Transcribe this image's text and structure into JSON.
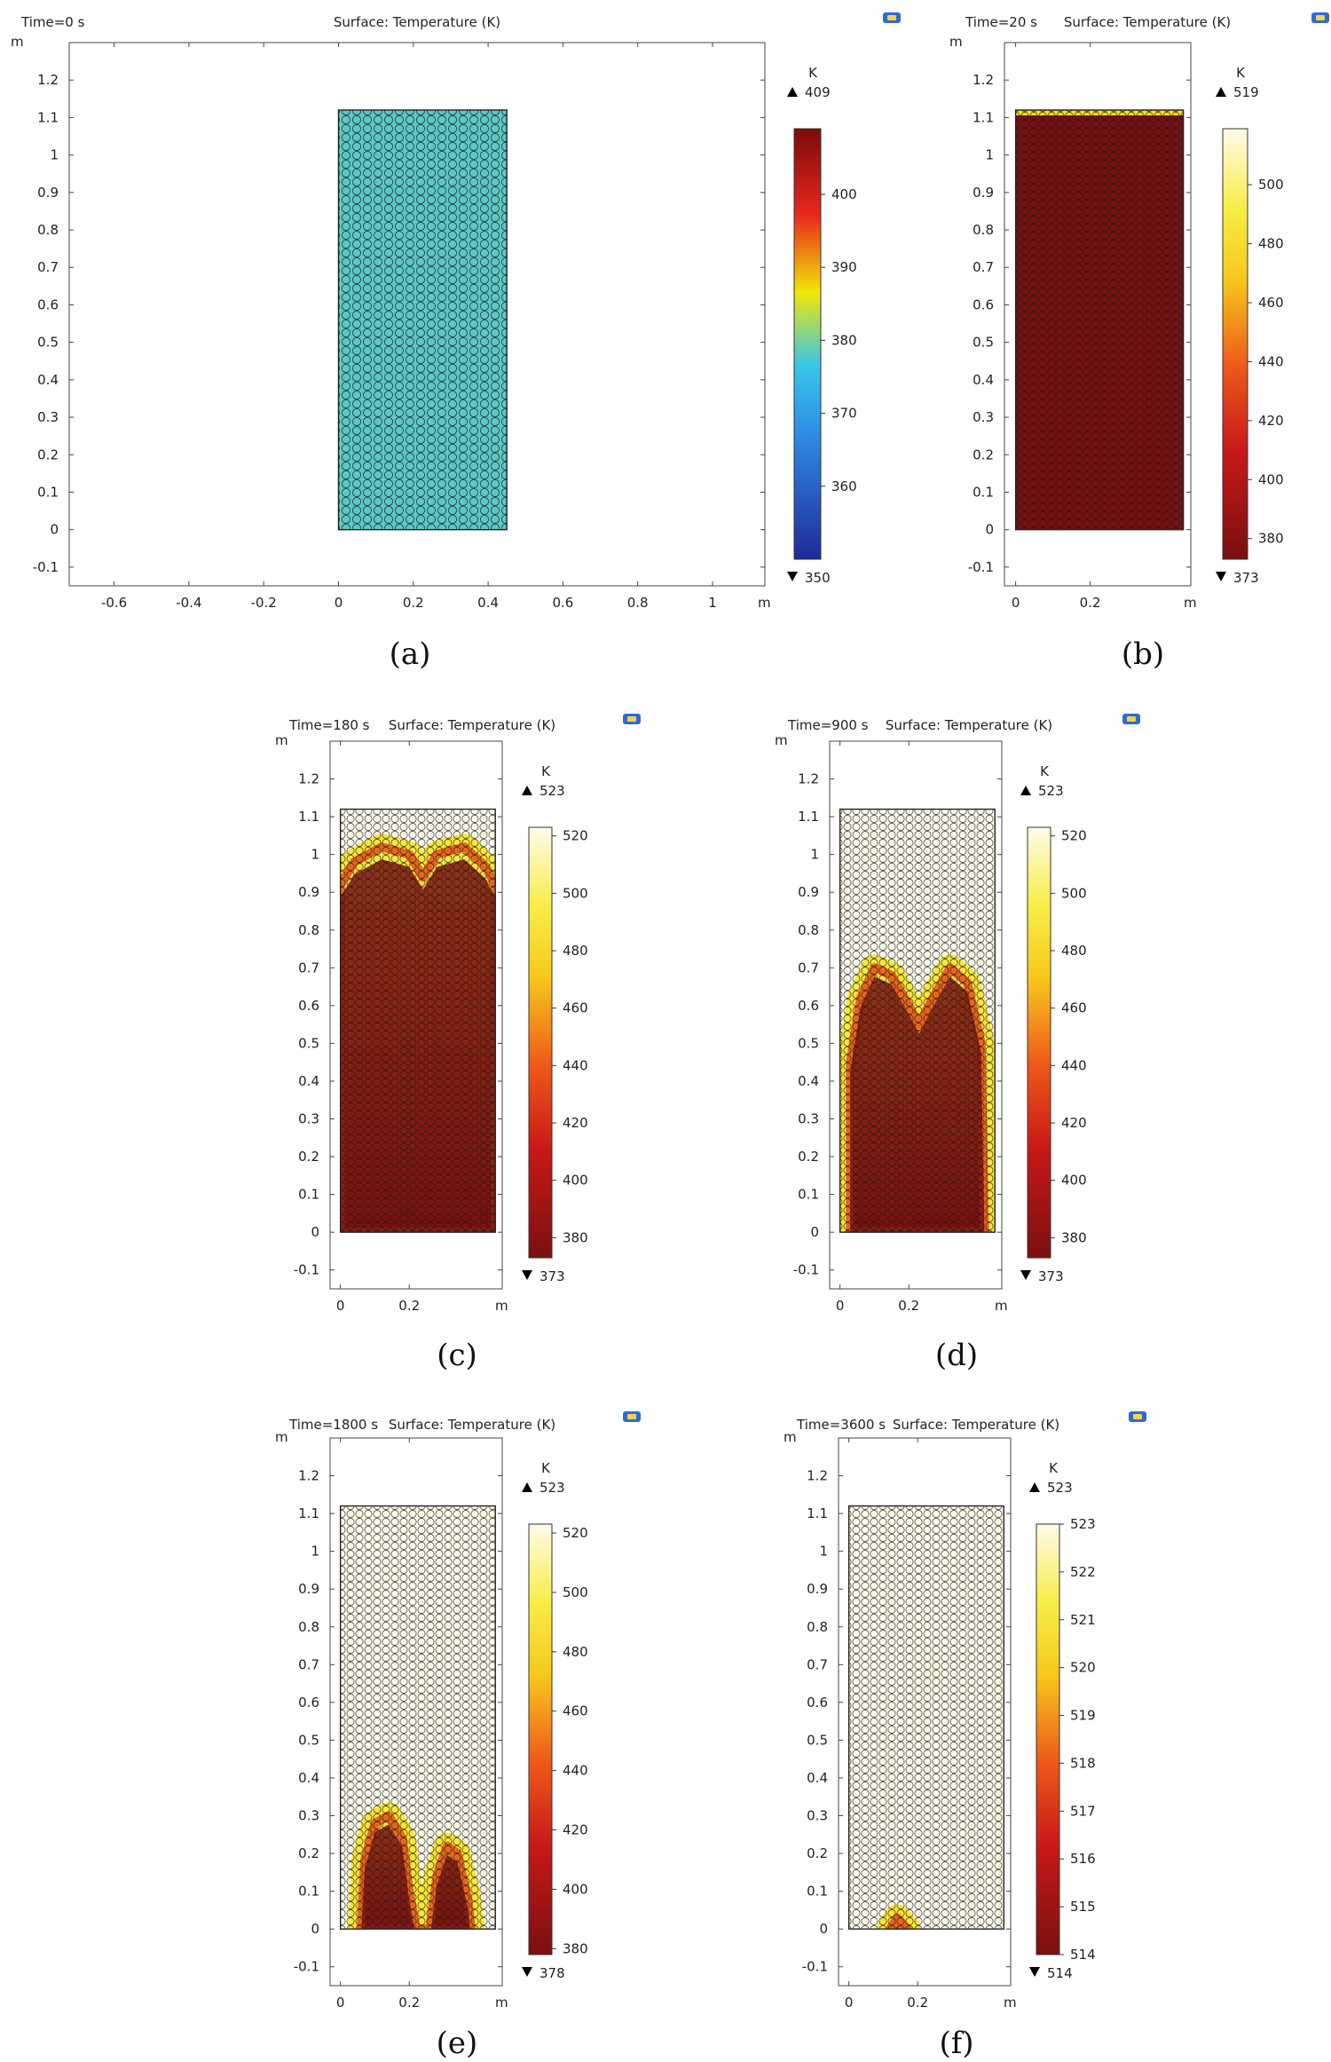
{
  "colors": {
    "cyan_bed": "#5cc8c6",
    "heat_low": "#7a1010",
    "heat_mid": "#e8281c",
    "heat_high": "#f7e21c",
    "heat_top": "#fffbea",
    "rainbow_low": "#1f2a9a",
    "rainbow_mid": "#38c6e8",
    "rainbow_mid2": "#f3e60a",
    "rainbow_high": "#7a0b0b"
  },
  "chart_data": [
    {
      "id": "a",
      "type": "heatmap",
      "time_label": "Time=0 s",
      "title": "Surface: Temperature (K)",
      "caption": "(a)",
      "unit_label": "m",
      "colorbar_unit": "K",
      "max_label": "409",
      "min_label": "350",
      "colorbar_ticks": [
        "400",
        "390",
        "380",
        "370",
        "360"
      ],
      "colorbar_tick_values": [
        400,
        390,
        380,
        370,
        360
      ],
      "colorbar_range": [
        350,
        409
      ],
      "colormap": "rainbow",
      "xlim": [
        -0.72,
        1.14
      ],
      "ylim": [
        -0.15,
        1.3
      ],
      "xticks": [
        "-0.6",
        "-0.4",
        "-0.2",
        "0",
        "0.2",
        "0.4",
        "0.6",
        "0.8",
        "1"
      ],
      "xtick_values": [
        -0.6,
        -0.4,
        -0.2,
        0,
        0.2,
        0.4,
        0.6,
        0.8,
        1
      ],
      "yticks": [
        "1.2",
        "1.1",
        "1",
        "0.9",
        "0.8",
        "0.7",
        "0.6",
        "0.5",
        "0.4",
        "0.3",
        "0.2",
        "0.1",
        "0",
        "-0.1"
      ],
      "ytick_values": [
        1.2,
        1.1,
        1,
        0.9,
        0.8,
        0.7,
        0.6,
        0.5,
        0.4,
        0.3,
        0.2,
        0.1,
        0,
        -0.1
      ],
      "bed": {
        "x0": 0,
        "x1": 0.45,
        "y0": 0,
        "y1": 1.12
      },
      "front": []
    },
    {
      "id": "b",
      "type": "heatmap",
      "time_label": "Time=20 s",
      "title": "Surface: Temperature (K)",
      "caption": "(b)",
      "unit_label": "m",
      "colorbar_unit": "K",
      "max_label": "519",
      "min_label": "373",
      "colorbar_ticks": [
        "500",
        "480",
        "460",
        "440",
        "420",
        "400",
        "380"
      ],
      "colorbar_tick_values": [
        500,
        480,
        460,
        440,
        420,
        400,
        380
      ],
      "colorbar_range": [
        373,
        519
      ],
      "colormap": "heat",
      "xlim": [
        -0.03,
        0.47
      ],
      "ylim": [
        -0.15,
        1.3
      ],
      "xticks": [
        "0",
        "0.2"
      ],
      "xtick_values": [
        0,
        0.2
      ],
      "yticks": [
        "1.2",
        "1.1",
        "1",
        "0.9",
        "0.8",
        "0.7",
        "0.6",
        "0.5",
        "0.4",
        "0.3",
        "0.2",
        "0.1",
        "0",
        "-0.1"
      ],
      "ytick_values": [
        1.2,
        1.1,
        1,
        0.9,
        0.8,
        0.7,
        0.6,
        0.5,
        0.4,
        0.3,
        0.2,
        0.1,
        0,
        -0.1
      ],
      "bed": {
        "x0": 0,
        "x1": 0.45,
        "y0": 0,
        "y1": 1.12
      },
      "front": [
        [
          0,
          1.1
        ],
        [
          0.45,
          1.1
        ]
      ]
    },
    {
      "id": "c",
      "type": "heatmap",
      "time_label": "Time=180 s",
      "title": "Surface: Temperature (K)",
      "caption": "(c)",
      "unit_label": "m",
      "colorbar_unit": "K",
      "max_label": "523",
      "min_label": "373",
      "colorbar_ticks": [
        "520",
        "500",
        "480",
        "460",
        "440",
        "420",
        "400",
        "380"
      ],
      "colorbar_tick_values": [
        520,
        500,
        480,
        460,
        440,
        420,
        400,
        380
      ],
      "colorbar_range": [
        373,
        523
      ],
      "colormap": "heat",
      "xlim": [
        -0.03,
        0.47
      ],
      "ylim": [
        -0.15,
        1.3
      ],
      "xticks": [
        "0",
        "0.2"
      ],
      "xtick_values": [
        0,
        0.2
      ],
      "yticks": [
        "1.2",
        "1.1",
        "1",
        "0.9",
        "0.8",
        "0.7",
        "0.6",
        "0.5",
        "0.4",
        "0.3",
        "0.2",
        "0.1",
        "0",
        "-0.1"
      ],
      "ytick_values": [
        1.2,
        1.1,
        1,
        0.9,
        0.8,
        0.7,
        0.6,
        0.5,
        0.4,
        0.3,
        0.2,
        0.1,
        0,
        -0.1
      ],
      "bed": {
        "x0": 0,
        "x1": 0.45,
        "y0": 0,
        "y1": 1.12
      },
      "front": [
        [
          0,
          0.92
        ],
        [
          0.04,
          0.98
        ],
        [
          0.12,
          1.02
        ],
        [
          0.2,
          1.0
        ],
        [
          0.24,
          0.94
        ],
        [
          0.28,
          1.0
        ],
        [
          0.36,
          1.02
        ],
        [
          0.42,
          0.97
        ],
        [
          0.45,
          0.92
        ]
      ]
    },
    {
      "id": "d",
      "type": "heatmap",
      "time_label": "Time=900 s",
      "title": "Surface: Temperature (K)",
      "caption": "(d)",
      "unit_label": "m",
      "colorbar_unit": "K",
      "max_label": "523",
      "min_label": "373",
      "colorbar_ticks": [
        "520",
        "500",
        "480",
        "460",
        "440",
        "420",
        "400",
        "380"
      ],
      "colorbar_tick_values": [
        520,
        500,
        480,
        460,
        440,
        420,
        400,
        380
      ],
      "colorbar_range": [
        373,
        523
      ],
      "colormap": "heat",
      "xlim": [
        -0.03,
        0.47
      ],
      "ylim": [
        -0.15,
        1.3
      ],
      "xticks": [
        "0",
        "0.2"
      ],
      "xtick_values": [
        0,
        0.2
      ],
      "yticks": [
        "1.2",
        "1.1",
        "1",
        "0.9",
        "0.8",
        "0.7",
        "0.6",
        "0.5",
        "0.4",
        "0.3",
        "0.2",
        "0.1",
        "0",
        "-0.1"
      ],
      "ytick_values": [
        1.2,
        1.1,
        1,
        0.9,
        0.8,
        0.7,
        0.6,
        0.5,
        0.4,
        0.3,
        0.2,
        0.1,
        0,
        -0.1
      ],
      "bed": {
        "x0": 0,
        "x1": 0.45,
        "y0": 0,
        "y1": 1.12
      },
      "front": [
        [
          0.03,
          0.0
        ],
        [
          0.03,
          0.45
        ],
        [
          0.06,
          0.62
        ],
        [
          0.1,
          0.7
        ],
        [
          0.15,
          0.68
        ],
        [
          0.2,
          0.6
        ],
        [
          0.23,
          0.55
        ],
        [
          0.27,
          0.62
        ],
        [
          0.32,
          0.7
        ],
        [
          0.37,
          0.66
        ],
        [
          0.41,
          0.5
        ],
        [
          0.42,
          0.0
        ]
      ]
    },
    {
      "id": "e",
      "type": "heatmap",
      "time_label": "Time=1800 s",
      "title": "Surface: Temperature (K)",
      "caption": "(e)",
      "unit_label": "m",
      "colorbar_unit": "K",
      "max_label": "523",
      "min_label": "378",
      "colorbar_ticks": [
        "520",
        "500",
        "480",
        "460",
        "440",
        "420",
        "400",
        "380"
      ],
      "colorbar_tick_values": [
        520,
        500,
        480,
        460,
        440,
        420,
        400,
        380
      ],
      "colorbar_range": [
        378,
        523
      ],
      "colormap": "heat",
      "xlim": [
        -0.03,
        0.47
      ],
      "ylim": [
        -0.15,
        1.3
      ],
      "xticks": [
        "0",
        "0.2"
      ],
      "xtick_values": [
        0,
        0.2
      ],
      "yticks": [
        "1.2",
        "1.1",
        "1",
        "0.9",
        "0.8",
        "0.7",
        "0.6",
        "0.5",
        "0.4",
        "0.3",
        "0.2",
        "0.1",
        "0",
        "-0.1"
      ],
      "ytick_values": [
        1.2,
        1.1,
        1,
        0.9,
        0.8,
        0.7,
        0.6,
        0.5,
        0.4,
        0.3,
        0.2,
        0.1,
        0,
        -0.1
      ],
      "bed": {
        "x0": 0,
        "x1": 0.45,
        "y0": 0,
        "y1": 1.12
      },
      "front": [
        [
          0.06,
          0.0
        ],
        [
          0.07,
          0.18
        ],
        [
          0.1,
          0.28
        ],
        [
          0.14,
          0.3
        ],
        [
          0.18,
          0.24
        ],
        [
          0.2,
          0.1
        ],
        [
          0.22,
          0.0
        ],
        [
          0.26,
          0.0
        ],
        [
          0.28,
          0.14
        ],
        [
          0.31,
          0.22
        ],
        [
          0.34,
          0.2
        ],
        [
          0.37,
          0.08
        ],
        [
          0.38,
          0.0
        ]
      ]
    },
    {
      "id": "f",
      "type": "heatmap",
      "time_label": "Time=3600 s",
      "title": "Surface: Temperature (K)",
      "caption": "(f)",
      "unit_label": "m",
      "colorbar_unit": "K",
      "max_label": "523",
      "min_label": "514",
      "colorbar_ticks": [
        "523",
        "522",
        "521",
        "520",
        "519",
        "518",
        "517",
        "516",
        "515",
        "514"
      ],
      "colorbar_tick_values": [
        523,
        522,
        521,
        520,
        519,
        518,
        517,
        516,
        515,
        514
      ],
      "colorbar_range": [
        514,
        523
      ],
      "colormap": "heat",
      "xlim": [
        -0.03,
        0.47
      ],
      "ylim": [
        -0.15,
        1.3
      ],
      "xticks": [
        "0",
        "0.2"
      ],
      "xtick_values": [
        0,
        0.2
      ],
      "yticks": [
        "1.2",
        "1.1",
        "1",
        "0.9",
        "0.8",
        "0.7",
        "0.6",
        "0.5",
        "0.4",
        "0.3",
        "0.2",
        "0.1",
        "0",
        "-0.1"
      ],
      "ytick_values": [
        1.2,
        1.1,
        1,
        0.9,
        0.8,
        0.7,
        0.6,
        0.5,
        0.4,
        0.3,
        0.2,
        0.1,
        0,
        -0.1
      ],
      "bed": {
        "x0": 0,
        "x1": 0.45,
        "y0": 0,
        "y1": 1.12
      },
      "front": [
        [
          0.12,
          0.0
        ],
        [
          0.14,
          0.03
        ],
        [
          0.17,
          0.0
        ]
      ]
    }
  ]
}
